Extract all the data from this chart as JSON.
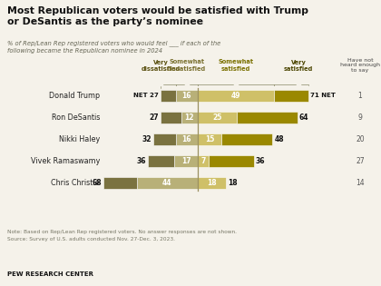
{
  "title": "Most Republican voters would be satisfied with Trump\nor DeSantis as the party’s nominee",
  "subtitle": "% of Rep/Lean Rep registered voters who would feel ___ if each of the\nfollowing became the Republican nominee in 2024",
  "candidates": [
    "Donald Trump",
    "Ron DeSantis",
    "Nikki Haley",
    "Vivek Ramaswamy",
    "Chris Christie"
  ],
  "very_dissatisfied": [
    11,
    15,
    16,
    19,
    24
  ],
  "somewhat_dissatisfied": [
    16,
    12,
    16,
    17,
    44
  ],
  "somewhat_satisfied": [
    49,
    25,
    15,
    7,
    18
  ],
  "very_satisfied": [
    22,
    39,
    33,
    29,
    0
  ],
  "net_dissatisfied": [
    27,
    27,
    32,
    36,
    68
  ],
  "net_satisfied": [
    71,
    64,
    48,
    36,
    18
  ],
  "not_heard": [
    1,
    9,
    20,
    27,
    14
  ],
  "color_very_dis": "#7a7240",
  "color_somewhat_dis": "#b8b078",
  "color_somewhat_sat": "#cfc068",
  "color_very_sat": "#9a8800",
  "color_center_line": "#9a9060",
  "color_bg": "#f5f2ea",
  "color_title": "#111111",
  "color_subtitle": "#666655",
  "color_name": "#222222",
  "color_netnum": "#111111",
  "color_notheard": "#555555",
  "color_note": "#777766",
  "color_header_vd": "#5a5010",
  "color_header_sd": "#7a7030",
  "color_header_ss": "#7a7000",
  "color_header_vs": "#4a4400",
  "note_line1": "Note: Based on Rep/Lean Rep registered voters. No answer responses are not shown.",
  "note_line2": "Source: Survey of U.S. adults conducted Nov. 27-Dec. 3, 2023.",
  "footer": "PEW RESEARCH CENTER"
}
